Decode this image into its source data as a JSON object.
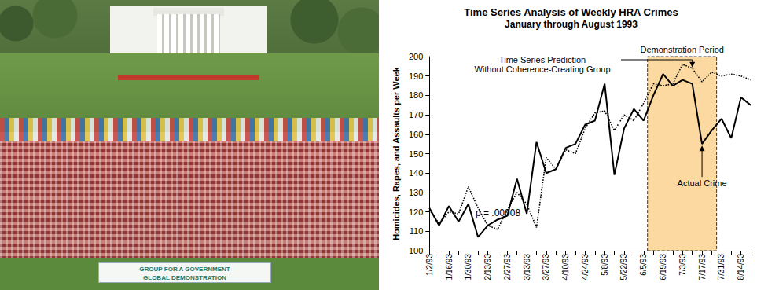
{
  "chart_data": {
    "type": "line",
    "title": "Time Series Analysis of Weekly HRA Crimes",
    "subtitle": "January through August 1993",
    "y_label": "Homicides, Rapes, and Assaults per Week",
    "categories": [
      "1/2/93",
      null,
      "1/16/93",
      null,
      "1/30/93",
      null,
      "2/13/93",
      null,
      "2/27/93",
      null,
      "3/13/93",
      null,
      "3/27/93",
      null,
      "4/10/93",
      null,
      "4/24/93",
      null,
      "5/8/93",
      null,
      "5/22/93",
      null,
      "6/5/93",
      null,
      "6/19/93",
      null,
      "7/3/93",
      null,
      "7/17/93",
      null,
      "7/31/93",
      null,
      "8/14/93",
      null
    ],
    "series": [
      {
        "name": "Actual Crime",
        "color": "#000000",
        "line_style": "solid",
        "marker": "none",
        "values": [
          122,
          113,
          123,
          115,
          124,
          107,
          113,
          116,
          118,
          137,
          119,
          156,
          140,
          142,
          153,
          155,
          165,
          167,
          186,
          139,
          163,
          173,
          167,
          180,
          191,
          185,
          188,
          186,
          155,
          162,
          168,
          158,
          179,
          175
        ]
      },
      {
        "name": "Time Series Prediction Without Coherence-Creating Group",
        "color": "#000000",
        "line_style": "dotted",
        "marker": "none",
        "values": [
          121,
          114,
          120,
          119,
          133,
          122,
          113,
          111,
          121,
          130,
          124,
          112,
          148,
          142,
          152,
          150,
          163,
          171,
          172,
          162,
          170,
          167,
          176,
          186,
          185,
          186,
          196,
          194,
          187,
          192,
          190,
          191,
          190,
          188
        ]
      }
    ],
    "ylim": [
      100,
      200
    ],
    "yticks": [
      100,
      110,
      120,
      130,
      140,
      150,
      160,
      170,
      180,
      190,
      200
    ],
    "grid": false,
    "shaded_period": {
      "label": "Demonstration Period",
      "from": 22.4,
      "to": 29.5,
      "color": "#fbd9a0"
    },
    "annotations": [
      {
        "text": "Time Series Prediction\nWithout Coherence-Creating Group",
        "series": 1,
        "point": 27
      },
      {
        "text": "Actual Crime",
        "series": 0,
        "point": 28
      },
      {
        "text": "p = .00008"
      }
    ]
  },
  "photo": {
    "banner": "GROUP FOR A GOVERNMENT\nGLOBAL DEMONSTRATION"
  }
}
